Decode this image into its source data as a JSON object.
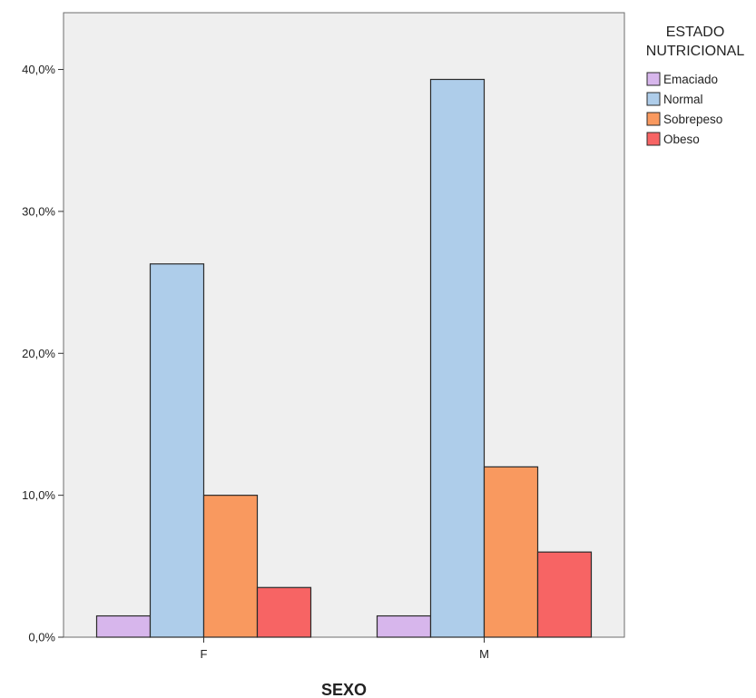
{
  "chart_data": {
    "type": "bar",
    "title": "",
    "xlabel": "SEXO",
    "ylabel": "",
    "categories": [
      "F",
      "M"
    ],
    "ylim": [
      0,
      44
    ],
    "yticks": [
      0,
      10,
      20,
      30,
      40
    ],
    "ytick_labels": [
      "0,0%",
      "10,0%",
      "20,0%",
      "30,0%",
      "40,0%"
    ],
    "grid": false,
    "legend": {
      "title_lines": [
        "ESTADO",
        "NUTRICIONAL"
      ],
      "placement": "right"
    },
    "series": [
      {
        "name": "Emaciado",
        "color": "#d7b6ec",
        "values": [
          1.5,
          1.5
        ]
      },
      {
        "name": "Normal",
        "color": "#aecdea",
        "values": [
          26.3,
          39.3
        ]
      },
      {
        "name": "Sobrepeso",
        "color": "#f9995f",
        "values": [
          10.0,
          12.0
        ]
      },
      {
        "name": "Obeso",
        "color": "#f76464",
        "values": [
          3.5,
          6.0
        ]
      }
    ]
  },
  "colors": {
    "plot_background": "#efefef",
    "bar_stroke": "#2b2b2b"
  }
}
